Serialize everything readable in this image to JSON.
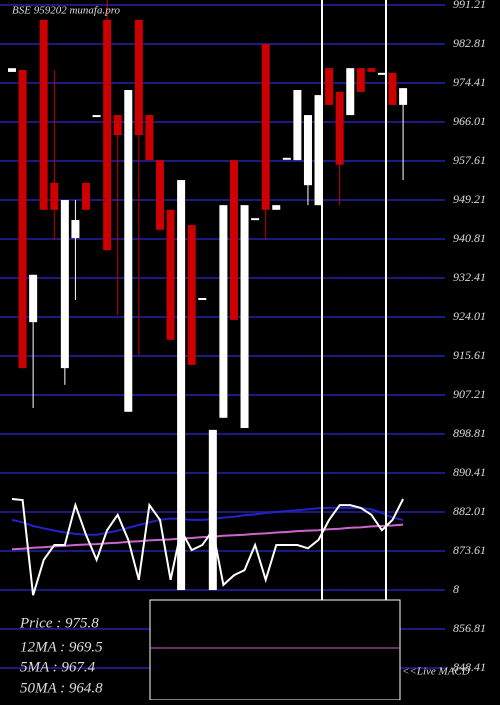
{
  "chart_data": {
    "type": "candlestick",
    "title": "BSE 959202 munafa.pro",
    "ylim": [
      848.41,
      991.21
    ],
    "yticks": [
      991.21,
      982.81,
      974.41,
      966.01,
      957.61,
      949.21,
      940.81,
      932.41,
      924.01,
      915.61,
      907.21,
      898.81,
      890.41,
      882.01,
      873.61,
      {
        "value": 865.21,
        "label": "8"
      },
      856.81,
      848.41
    ],
    "grid": true,
    "grid_color": "#1a1a80",
    "up_color": "#ffffff",
    "down_color": "#cc0000",
    "candles": [
      {
        "open": 976.8,
        "high": 977.6,
        "low": 976.8,
        "close": 977.6
      },
      {
        "open": 977.2,
        "high": 977.2,
        "low": 913.0,
        "close": 913.0
      },
      {
        "open": 922.9,
        "high": 933.1,
        "low": 904.4,
        "close": 933.1
      },
      {
        "open": 988.0,
        "high": 988.0,
        "low": 947.1,
        "close": 947.1
      },
      {
        "open": 952.9,
        "high": 977.2,
        "low": 940.6,
        "close": 947.1
      },
      {
        "open": 913.0,
        "high": 949.2,
        "low": 909.4,
        "close": 949.2
      },
      {
        "open": 941.0,
        "high": 949.2,
        "low": 927.7,
        "close": 944.9
      },
      {
        "open": 952.9,
        "high": 952.9,
        "low": 947.1,
        "close": 947.1
      },
      {
        "open": 967.5,
        "high": 967.5,
        "low": 967.5,
        "close": 967.5
      },
      {
        "open": 988.0,
        "high": 992.3,
        "low": 938.4,
        "close": 938.4
      },
      {
        "open": 967.5,
        "high": 967.5,
        "low": 924.4,
        "close": 963.2
      },
      {
        "open": 903.6,
        "high": 972.9,
        "low": 903.6,
        "close": 972.9
      },
      {
        "open": 988.0,
        "high": 988.0,
        "low": 915.8,
        "close": 963.2
      },
      {
        "open": 967.5,
        "high": 967.5,
        "low": 957.8,
        "close": 957.8
      },
      {
        "open": 957.8,
        "high": 957.8,
        "low": 942.8,
        "close": 942.8
      },
      {
        "open": 947.1,
        "high": 947.1,
        "low": 919.1,
        "close": 919.1
      },
      {
        "open": 865.2,
        "high": 953.5,
        "low": 865.2,
        "close": 953.5
      },
      {
        "open": 943.8,
        "high": 943.8,
        "low": 913.7,
        "close": 913.7
      },
      {
        "open": 928.1,
        "high": 928.1,
        "low": 928.1,
        "close": 928.1
      },
      {
        "open": 865.2,
        "high": 899.7,
        "low": 865.2,
        "close": 899.7
      },
      {
        "open": 902.3,
        "high": 948.1,
        "low": 902.3,
        "close": 948.1
      },
      {
        "open": 957.8,
        "high": 957.8,
        "low": 923.4,
        "close": 923.4
      },
      {
        "open": 900.1,
        "high": 948.1,
        "low": 900.1,
        "close": 948.1
      },
      {
        "open": 945.3,
        "high": 945.3,
        "low": 945.3,
        "close": 945.3
      },
      {
        "open": 982.8,
        "high": 982.8,
        "low": 940.6,
        "close": 947.1
      },
      {
        "open": 947.1,
        "high": 948.1,
        "low": 947.1,
        "close": 948.1
      },
      {
        "open": 958.3,
        "high": 958.3,
        "low": 958.3,
        "close": 958.3
      },
      {
        "open": 957.8,
        "high": 972.9,
        "low": 957.8,
        "close": 972.9
      },
      {
        "open": 952.4,
        "high": 967.5,
        "low": 948.1,
        "close": 967.5
      },
      {
        "open": 948.1,
        "high": 971.8,
        "low": 948.1,
        "close": 971.8
      },
      {
        "open": 977.6,
        "high": 977.6,
        "low": 969.7,
        "close": 969.7
      },
      {
        "open": 972.5,
        "high": 972.5,
        "low": 948.1,
        "close": 956.8
      },
      {
        "open": 967.5,
        "high": 977.6,
        "low": 967.5,
        "close": 977.6
      },
      {
        "open": 977.6,
        "high": 977.6,
        "low": 972.5,
        "close": 972.5
      },
      {
        "open": 977.6,
        "high": 977.6,
        "low": 976.8,
        "close": 976.8
      },
      {
        "open": 976.6,
        "high": 976.6,
        "low": 976.6,
        "close": 976.6
      },
      {
        "open": 976.6,
        "high": 976.6,
        "low": 969.7,
        "close": 969.7
      },
      {
        "open": 969.7,
        "high": 973.3,
        "low": 953.5,
        "close": 973.3
      }
    ],
    "overlays": [
      {
        "color": "#cc66cc",
        "values": [
          874.0,
          874.1,
          874.3,
          874.4,
          874.6,
          874.7,
          874.9,
          875.0,
          875.1,
          875.3,
          875.4,
          875.6,
          875.7,
          875.9,
          876.0,
          876.1,
          876.3,
          876.4,
          876.6,
          876.7,
          876.9,
          877.0,
          877.1,
          877.3,
          877.4,
          877.6,
          877.7,
          877.9,
          878.0,
          878.1,
          878.3,
          878.4,
          878.6,
          878.7,
          878.9,
          879.0,
          879.1,
          879.3
        ]
      },
      {
        "color": "#2222cc",
        "values": [
          880.3,
          879.8,
          879.0,
          878.5,
          878.0,
          877.6,
          877.3,
          877.1,
          877.1,
          877.5,
          878.0,
          878.6,
          879.2,
          879.8,
          880.3,
          880.6,
          880.5,
          880.3,
          880.3,
          880.5,
          880.8,
          881.0,
          881.3,
          881.5,
          881.8,
          882.0,
          882.2,
          882.4,
          882.6,
          882.8,
          882.9,
          882.9,
          882.9,
          882.9,
          882.6,
          881.8,
          880.8,
          880.3
        ]
      },
      {
        "color": "#ffffff",
        "values": [
          884.8,
          884.6,
          864.1,
          871.7,
          874.9,
          874.9,
          883.5,
          877.1,
          871.7,
          878.1,
          881.4,
          876.0,
          867.4,
          883.5,
          880.3,
          867.4,
          878.1,
          873.8,
          874.9,
          878.1,
          866.3,
          868.4,
          869.5,
          874.9,
          867.4,
          874.9,
          874.9,
          874.9,
          874.2,
          876.0,
          880.3,
          883.5,
          883.5,
          882.9,
          881.4,
          878.1,
          880.3,
          884.8
        ]
      }
    ],
    "info_labels": [
      "Price   : 975.8",
      "12MA : 969.5",
      "5MA : 967.4",
      "50MA : 964.8"
    ],
    "macd_label": "<<Live MACD"
  }
}
